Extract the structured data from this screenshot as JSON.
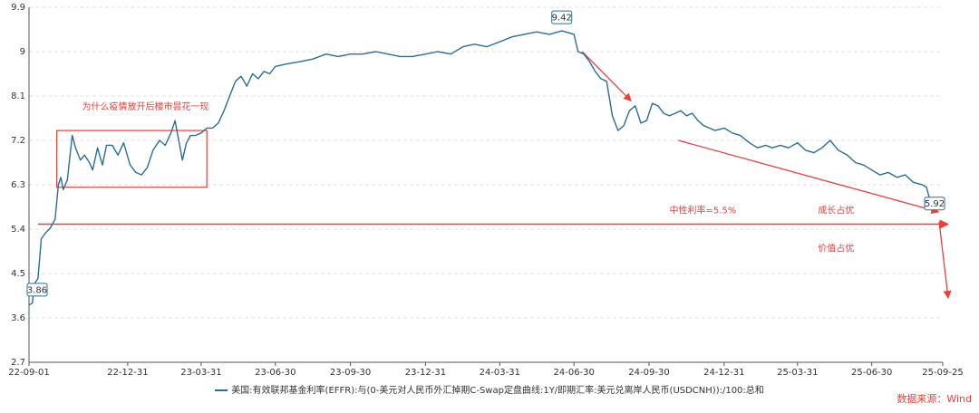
{
  "colors": {
    "series": "#2a6e96",
    "annotation": "#e8413e",
    "grid": "#e2e2e2",
    "axis": "#555555"
  },
  "chart_data": {
    "type": "line",
    "xlabel": "",
    "ylabel": "",
    "ylim": [
      2.7,
      9.9
    ],
    "yticks": [
      "2.7",
      "3.6",
      "4.5",
      "5.4",
      "6.3",
      "7.2",
      "8.1",
      "9",
      "9.9"
    ],
    "xticks": [
      "22-09-01",
      "22-12-31",
      "23-03-31",
      "23-06-30",
      "23-09-30",
      "23-12-31",
      "24-03-31",
      "24-06-30",
      "24-09-30",
      "24-12-31",
      "25-03-31",
      "25-06-30",
      "25-09-25"
    ],
    "grid": "horizontal dashed",
    "legend": "bottom-center",
    "series": [
      {
        "name": "美国:有效联邦基金利率(EFFR):与(0-美元对人民币外汇掉期C-Swap定盘曲线:1Y/即期汇率:美元兑离岸人民币(USDCNH)):/100:总和",
        "points": [
          [
            "22-09-01",
            3.86
          ],
          [
            "22-09-05",
            3.9
          ],
          [
            "22-09-08",
            4.3
          ],
          [
            "22-09-12",
            4.4
          ],
          [
            "22-09-16",
            5.2
          ],
          [
            "22-09-21",
            5.32
          ],
          [
            "22-09-27",
            5.42
          ],
          [
            "22-10-03",
            5.6
          ],
          [
            "22-10-07",
            6.3
          ],
          [
            "22-10-10",
            6.45
          ],
          [
            "22-10-13",
            6.2
          ],
          [
            "22-10-18",
            6.4
          ],
          [
            "22-10-24",
            7.3
          ],
          [
            "22-10-28",
            7.05
          ],
          [
            "22-11-03",
            6.8
          ],
          [
            "22-11-08",
            6.9
          ],
          [
            "22-11-14",
            6.75
          ],
          [
            "22-11-18",
            6.6
          ],
          [
            "22-11-24",
            7.05
          ],
          [
            "22-11-30",
            6.7
          ],
          [
            "22-12-05",
            7.1
          ],
          [
            "22-12-12",
            7.1
          ],
          [
            "22-12-19",
            6.9
          ],
          [
            "22-12-26",
            7.15
          ],
          [
            "23-01-03",
            6.7
          ],
          [
            "23-01-10",
            6.55
          ],
          [
            "23-01-17",
            6.5
          ],
          [
            "23-01-24",
            6.65
          ],
          [
            "23-01-31",
            7.0
          ],
          [
            "23-02-08",
            7.2
          ],
          [
            "23-02-15",
            7.1
          ],
          [
            "23-02-22",
            7.35
          ],
          [
            "23-02-27",
            7.6
          ],
          [
            "23-03-03",
            7.25
          ],
          [
            "23-03-08",
            6.8
          ],
          [
            "23-03-13",
            7.15
          ],
          [
            "23-03-18",
            7.3
          ],
          [
            "23-03-24",
            7.3
          ],
          [
            "23-03-31",
            7.35
          ],
          [
            "23-04-07",
            7.45
          ],
          [
            "23-04-14",
            7.45
          ],
          [
            "23-04-21",
            7.55
          ],
          [
            "23-04-28",
            7.8
          ],
          [
            "23-05-05",
            8.1
          ],
          [
            "23-05-12",
            8.4
          ],
          [
            "23-05-19",
            8.5
          ],
          [
            "23-05-26",
            8.3
          ],
          [
            "23-06-02",
            8.55
          ],
          [
            "23-06-09",
            8.45
          ],
          [
            "23-06-16",
            8.6
          ],
          [
            "23-06-23",
            8.55
          ],
          [
            "23-06-30",
            8.7
          ],
          [
            "23-07-14",
            8.75
          ],
          [
            "23-07-31",
            8.8
          ],
          [
            "23-08-15",
            8.85
          ],
          [
            "23-08-31",
            8.95
          ],
          [
            "23-09-15",
            8.9
          ],
          [
            "23-09-30",
            8.95
          ],
          [
            "23-10-15",
            8.95
          ],
          [
            "23-10-31",
            9.0
          ],
          [
            "23-11-15",
            8.95
          ],
          [
            "23-11-30",
            8.9
          ],
          [
            "23-12-15",
            8.9
          ],
          [
            "23-12-31",
            8.95
          ],
          [
            "24-01-15",
            9.0
          ],
          [
            "24-01-31",
            8.95
          ],
          [
            "24-02-15",
            9.1
          ],
          [
            "24-02-29",
            9.15
          ],
          [
            "24-03-15",
            9.1
          ],
          [
            "24-03-31",
            9.2
          ],
          [
            "24-04-15",
            9.3
          ],
          [
            "24-04-30",
            9.35
          ],
          [
            "24-05-15",
            9.4
          ],
          [
            "24-05-31",
            9.35
          ],
          [
            "24-06-15",
            9.42
          ],
          [
            "24-06-24",
            9.38
          ],
          [
            "24-06-30",
            9.35
          ],
          [
            "24-07-05",
            9.0
          ],
          [
            "24-07-12",
            8.95
          ],
          [
            "24-07-19",
            8.8
          ],
          [
            "24-07-26",
            8.6
          ],
          [
            "24-08-02",
            8.45
          ],
          [
            "24-08-09",
            8.4
          ],
          [
            "24-08-16",
            7.7
          ],
          [
            "24-08-23",
            7.4
          ],
          [
            "24-08-30",
            7.5
          ],
          [
            "24-09-06",
            7.8
          ],
          [
            "24-09-13",
            7.9
          ],
          [
            "24-09-20",
            7.55
          ],
          [
            "24-09-27",
            7.6
          ],
          [
            "24-10-04",
            7.95
          ],
          [
            "24-10-11",
            7.9
          ],
          [
            "24-10-18",
            7.75
          ],
          [
            "24-10-25",
            7.7
          ],
          [
            "24-11-01",
            7.75
          ],
          [
            "24-11-08",
            7.8
          ],
          [
            "24-11-15",
            7.7
          ],
          [
            "24-11-22",
            7.75
          ],
          [
            "24-11-29",
            7.6
          ],
          [
            "24-12-06",
            7.5
          ],
          [
            "24-12-13",
            7.45
          ],
          [
            "24-12-20",
            7.4
          ],
          [
            "24-12-31",
            7.45
          ],
          [
            "25-01-10",
            7.35
          ],
          [
            "25-01-20",
            7.3
          ],
          [
            "25-01-31",
            7.15
          ],
          [
            "25-02-10",
            7.05
          ],
          [
            "25-02-20",
            7.1
          ],
          [
            "25-02-28",
            7.05
          ],
          [
            "25-03-10",
            7.1
          ],
          [
            "25-03-20",
            7.05
          ],
          [
            "25-03-31",
            7.15
          ],
          [
            "25-04-10",
            7.0
          ],
          [
            "25-04-20",
            6.95
          ],
          [
            "25-04-30",
            7.05
          ],
          [
            "25-05-10",
            7.2
          ],
          [
            "25-05-20",
            7.0
          ],
          [
            "25-05-31",
            6.9
          ],
          [
            "25-06-10",
            6.75
          ],
          [
            "25-06-20",
            6.7
          ],
          [
            "25-06-30",
            6.6
          ],
          [
            "25-07-10",
            6.5
          ],
          [
            "25-07-20",
            6.55
          ],
          [
            "25-07-31",
            6.45
          ],
          [
            "25-08-10",
            6.5
          ],
          [
            "25-08-20",
            6.35
          ],
          [
            "25-08-31",
            6.3
          ],
          [
            "25-09-05",
            6.25
          ],
          [
            "25-09-10",
            5.95
          ],
          [
            "25-09-15",
            6.0
          ],
          [
            "25-09-20",
            5.92
          ],
          [
            "25-09-25",
            5.92
          ]
        ]
      }
    ],
    "data_labels": [
      {
        "date": "22-09-01",
        "value": "3.86"
      },
      {
        "date": "24-06-15",
        "value": "9.42"
      },
      {
        "date": "25-09-25",
        "value": "5.92"
      }
    ],
    "annotations": [
      {
        "text": "为什么疫情放开后楼市昙花一现"
      },
      {
        "text": "中性利率=5.5%",
        "value": 5.5
      },
      {
        "text": "成长占优"
      },
      {
        "text": "价值占优"
      }
    ],
    "source": "数据来源：Wind"
  }
}
